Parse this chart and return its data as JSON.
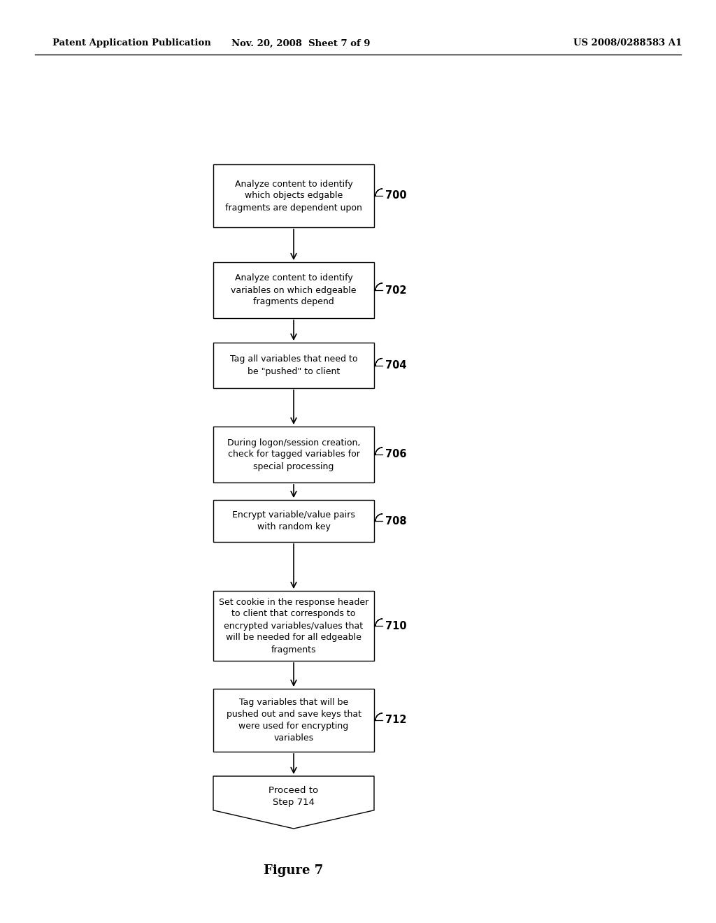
{
  "background_color": "#ffffff",
  "header_left": "Patent Application Publication",
  "header_center": "Nov. 20, 2008  Sheet 7 of 9",
  "header_right": "US 2008/0288583 A1",
  "figure_caption": "Figure 7",
  "boxes": [
    {
      "id": 0,
      "label": "Analyze content to identify\nwhich objects edgable\nfragments are dependent upon",
      "number": "700",
      "shape": "rect"
    },
    {
      "id": 1,
      "label": "Analyze content to identify\nvariables on which edgeable\nfragments depend",
      "number": "702",
      "shape": "rect"
    },
    {
      "id": 2,
      "label": "Tag all variables that need to\nbe \"pushed\" to client",
      "number": "704",
      "shape": "rect"
    },
    {
      "id": 3,
      "label": "During logon/session creation,\ncheck for tagged variables for\nspecial processing",
      "number": "706",
      "shape": "rect"
    },
    {
      "id": 4,
      "label": "Encrypt variable/value pairs\nwith random key",
      "number": "708",
      "shape": "rect"
    },
    {
      "id": 5,
      "label": "Set cookie in the response header\nto client that corresponds to\nencrypted variables/values that\nwill be needed for all edgeable\nfragments",
      "number": "710",
      "shape": "rect"
    },
    {
      "id": 6,
      "label": "Tag variables that will be\npushed out and save keys that\nwere used for encrypting\nvariables",
      "number": "712",
      "shape": "rect"
    },
    {
      "id": 7,
      "label": "Proceed to\nStep 714",
      "number": "",
      "shape": "pentagon"
    }
  ]
}
